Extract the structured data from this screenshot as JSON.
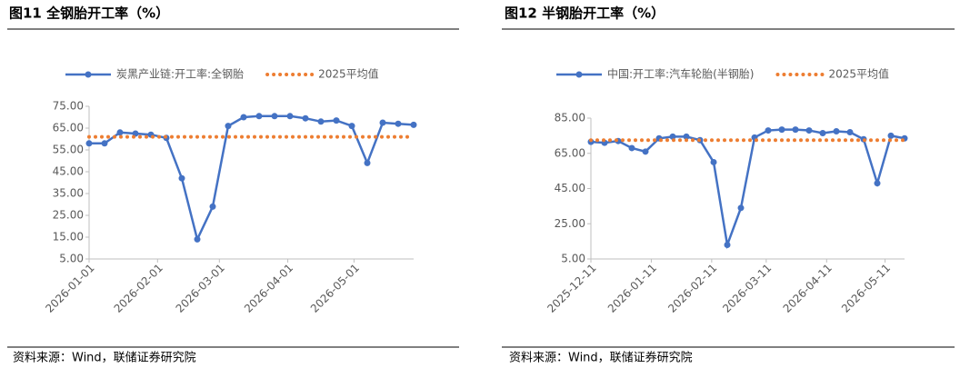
{
  "chart_data": [
    {
      "type": "line",
      "title": "图11 全钢胎开工率（%）",
      "source": "资料来源：Wind，联储证券研究院",
      "x": [
        "2026-01-01",
        "2026-01-08",
        "2026-01-15",
        "2026-01-22",
        "2026-01-29",
        "2026-02-05",
        "2026-02-12",
        "2026-02-19",
        "2026-02-26",
        "2026-03-05",
        "2026-03-12",
        "2026-03-19",
        "2026-03-26",
        "2026-04-02",
        "2026-04-09",
        "2026-04-16",
        "2026-04-23",
        "2026-04-30",
        "2026-05-07",
        "2026-05-14",
        "2026-05-21",
        "2026-05-28"
      ],
      "series": [
        {
          "name": "炭黑产业链:开工率:全钢胎",
          "color": "#4472c4",
          "style": "solid",
          "values": [
            58,
            58,
            63,
            62.5,
            62,
            60.5,
            42,
            14,
            29,
            66,
            70,
            70.5,
            70.5,
            70.5,
            69.5,
            68,
            68.5,
            66,
            49,
            67.5,
            67,
            66.5
          ]
        },
        {
          "name": "2025平均值",
          "color": "#ed7d31",
          "style": "dotted",
          "values": [
            61,
            61,
            61,
            61,
            61,
            61,
            61,
            61,
            61,
            61,
            61,
            61,
            61,
            61,
            61,
            61,
            61,
            61,
            61,
            61,
            61,
            61
          ]
        }
      ],
      "xlim": [
        "2026-01-01",
        "2026-05-28"
      ],
      "xticks": [
        "2026-01-01",
        "2026-02-01",
        "2026-03-01",
        "2026-04-01",
        "2026-05-01"
      ],
      "ylim": [
        5,
        75
      ],
      "yticks": [
        {
          "value": 5,
          "label": "5.00"
        },
        {
          "value": 15,
          "label": "15.00"
        },
        {
          "value": 25,
          "label": "25.00"
        },
        {
          "value": 35,
          "label": "35.00"
        },
        {
          "value": 45,
          "label": "45.00"
        },
        {
          "value": 55,
          "label": "55.00"
        },
        {
          "value": 65,
          "label": "65.00"
        },
        {
          "value": 75,
          "label": "75.00"
        }
      ]
    },
    {
      "type": "line",
      "title": "图12 半钢胎开工率（%）",
      "source": "资料来源：Wind，联储证券研究院",
      "x": [
        "2025-12-11",
        "2025-12-18",
        "2025-12-25",
        "2026-01-01",
        "2026-01-08",
        "2026-01-15",
        "2026-01-22",
        "2026-01-29",
        "2026-02-05",
        "2026-02-12",
        "2026-02-19",
        "2026-02-26",
        "2026-03-05",
        "2026-03-12",
        "2026-03-19",
        "2026-03-26",
        "2026-04-02",
        "2026-04-09",
        "2026-04-16",
        "2026-04-23",
        "2026-04-30",
        "2026-05-07",
        "2026-05-14",
        "2026-05-21"
      ],
      "series": [
        {
          "name": "中国:开工率:汽车轮胎(半钢胎)",
          "color": "#4472c4",
          "style": "solid",
          "values": [
            71.5,
            71,
            72,
            68,
            66,
            73.5,
            74.5,
            74.5,
            72.5,
            60,
            13,
            34,
            74,
            78,
            78.5,
            78.5,
            78,
            76.5,
            77.5,
            77,
            73,
            48,
            75,
            73.5
          ]
        },
        {
          "name": "2025平均值",
          "color": "#ed7d31",
          "style": "dotted",
          "values": [
            72.5,
            72.5,
            72.5,
            72.5,
            72.5,
            72.5,
            72.5,
            72.5,
            72.5,
            72.5,
            72.5,
            72.5,
            72.5,
            72.5,
            72.5,
            72.5,
            72.5,
            72.5,
            72.5,
            72.5,
            72.5,
            72.5,
            72.5,
            72.5
          ]
        }
      ],
      "xlim": [
        "2025-12-11",
        "2026-05-21"
      ],
      "xticks": [
        "2025-12-11",
        "2026-01-11",
        "2026-02-11",
        "2026-03-11",
        "2026-04-11",
        "2026-05-11"
      ],
      "ylim": [
        5,
        85
      ],
      "yticks": [
        {
          "value": 5,
          "label": "5.00"
        },
        {
          "value": 25,
          "label": "25.00"
        },
        {
          "value": 45,
          "label": "45.00"
        },
        {
          "value": 65,
          "label": "65.00"
        },
        {
          "value": 85,
          "label": "85.00"
        }
      ]
    }
  ]
}
